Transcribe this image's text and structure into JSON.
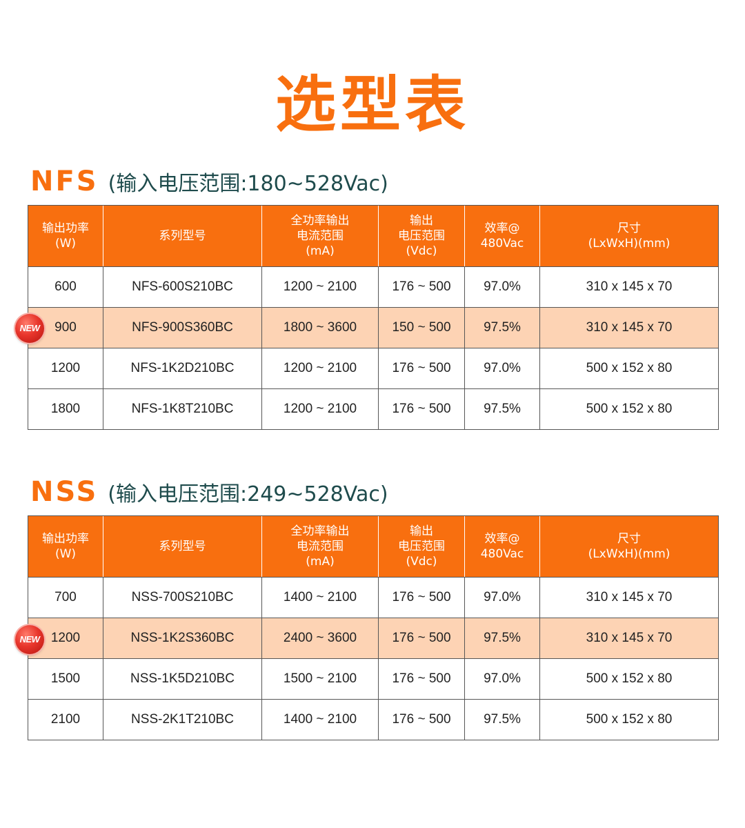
{
  "title": "选型表",
  "badge_label": "NEW",
  "colors": {
    "accent": "#f86f0f",
    "highlight_row": "#fdd3b4",
    "subtitle": "#1e4b4c",
    "badge": "#e8362c"
  },
  "headers": [
    [
      "输出功率",
      "(W)"
    ],
    [
      "系列型号"
    ],
    [
      "全功率输出",
      "电流范围",
      "(mA)"
    ],
    [
      "输出",
      "电压范围",
      "(Vdc)"
    ],
    [
      "效率@",
      "480Vac"
    ],
    [
      "尺寸",
      "(LxWxH)(mm)"
    ]
  ],
  "sections": [
    {
      "name": "NFS",
      "range": "(输入电压范围:180~528Vac)",
      "rows": [
        {
          "power": "600",
          "model": "NFS-600S210BC",
          "current": "1200 ~ 2100",
          "voltage": "176 ~ 500",
          "efficiency": "97.0%",
          "size": "310 x 145 x 70",
          "is_new": false
        },
        {
          "power": "900",
          "model": "NFS-900S360BC",
          "current": "1800 ~ 3600",
          "voltage": "150 ~ 500",
          "efficiency": "97.5%",
          "size": "310 x 145 x 70",
          "is_new": true
        },
        {
          "power": "1200",
          "model": "NFS-1K2D210BC",
          "current": "1200 ~ 2100",
          "voltage": "176 ~ 500",
          "efficiency": "97.0%",
          "size": "500 x 152 x 80",
          "is_new": false
        },
        {
          "power": "1800",
          "model": "NFS-1K8T210BC",
          "current": "1200 ~ 2100",
          "voltage": "176 ~ 500",
          "efficiency": "97.5%",
          "size": "500 x 152 x 80",
          "is_new": false
        }
      ]
    },
    {
      "name": "NSS",
      "range": "(输入电压范围:249~528Vac)",
      "rows": [
        {
          "power": "700",
          "model": "NSS-700S210BC",
          "current": "1400 ~ 2100",
          "voltage": "176 ~ 500",
          "efficiency": "97.0%",
          "size": "310 x 145 x 70",
          "is_new": false
        },
        {
          "power": "1200",
          "model": "NSS-1K2S360BC",
          "current": "2400 ~ 3600",
          "voltage": "176 ~ 500",
          "efficiency": "97.5%",
          "size": "310 x 145 x 70",
          "is_new": true
        },
        {
          "power": "1500",
          "model": "NSS-1K5D210BC",
          "current": "1500 ~ 2100",
          "voltage": "176 ~ 500",
          "efficiency": "97.0%",
          "size": "500 x 152 x 80",
          "is_new": false
        },
        {
          "power": "2100",
          "model": "NSS-2K1T210BC",
          "current": "1400 ~ 2100",
          "voltage": "176 ~ 500",
          "efficiency": "97.5%",
          "size": "500 x 152 x 80",
          "is_new": false
        }
      ]
    }
  ]
}
